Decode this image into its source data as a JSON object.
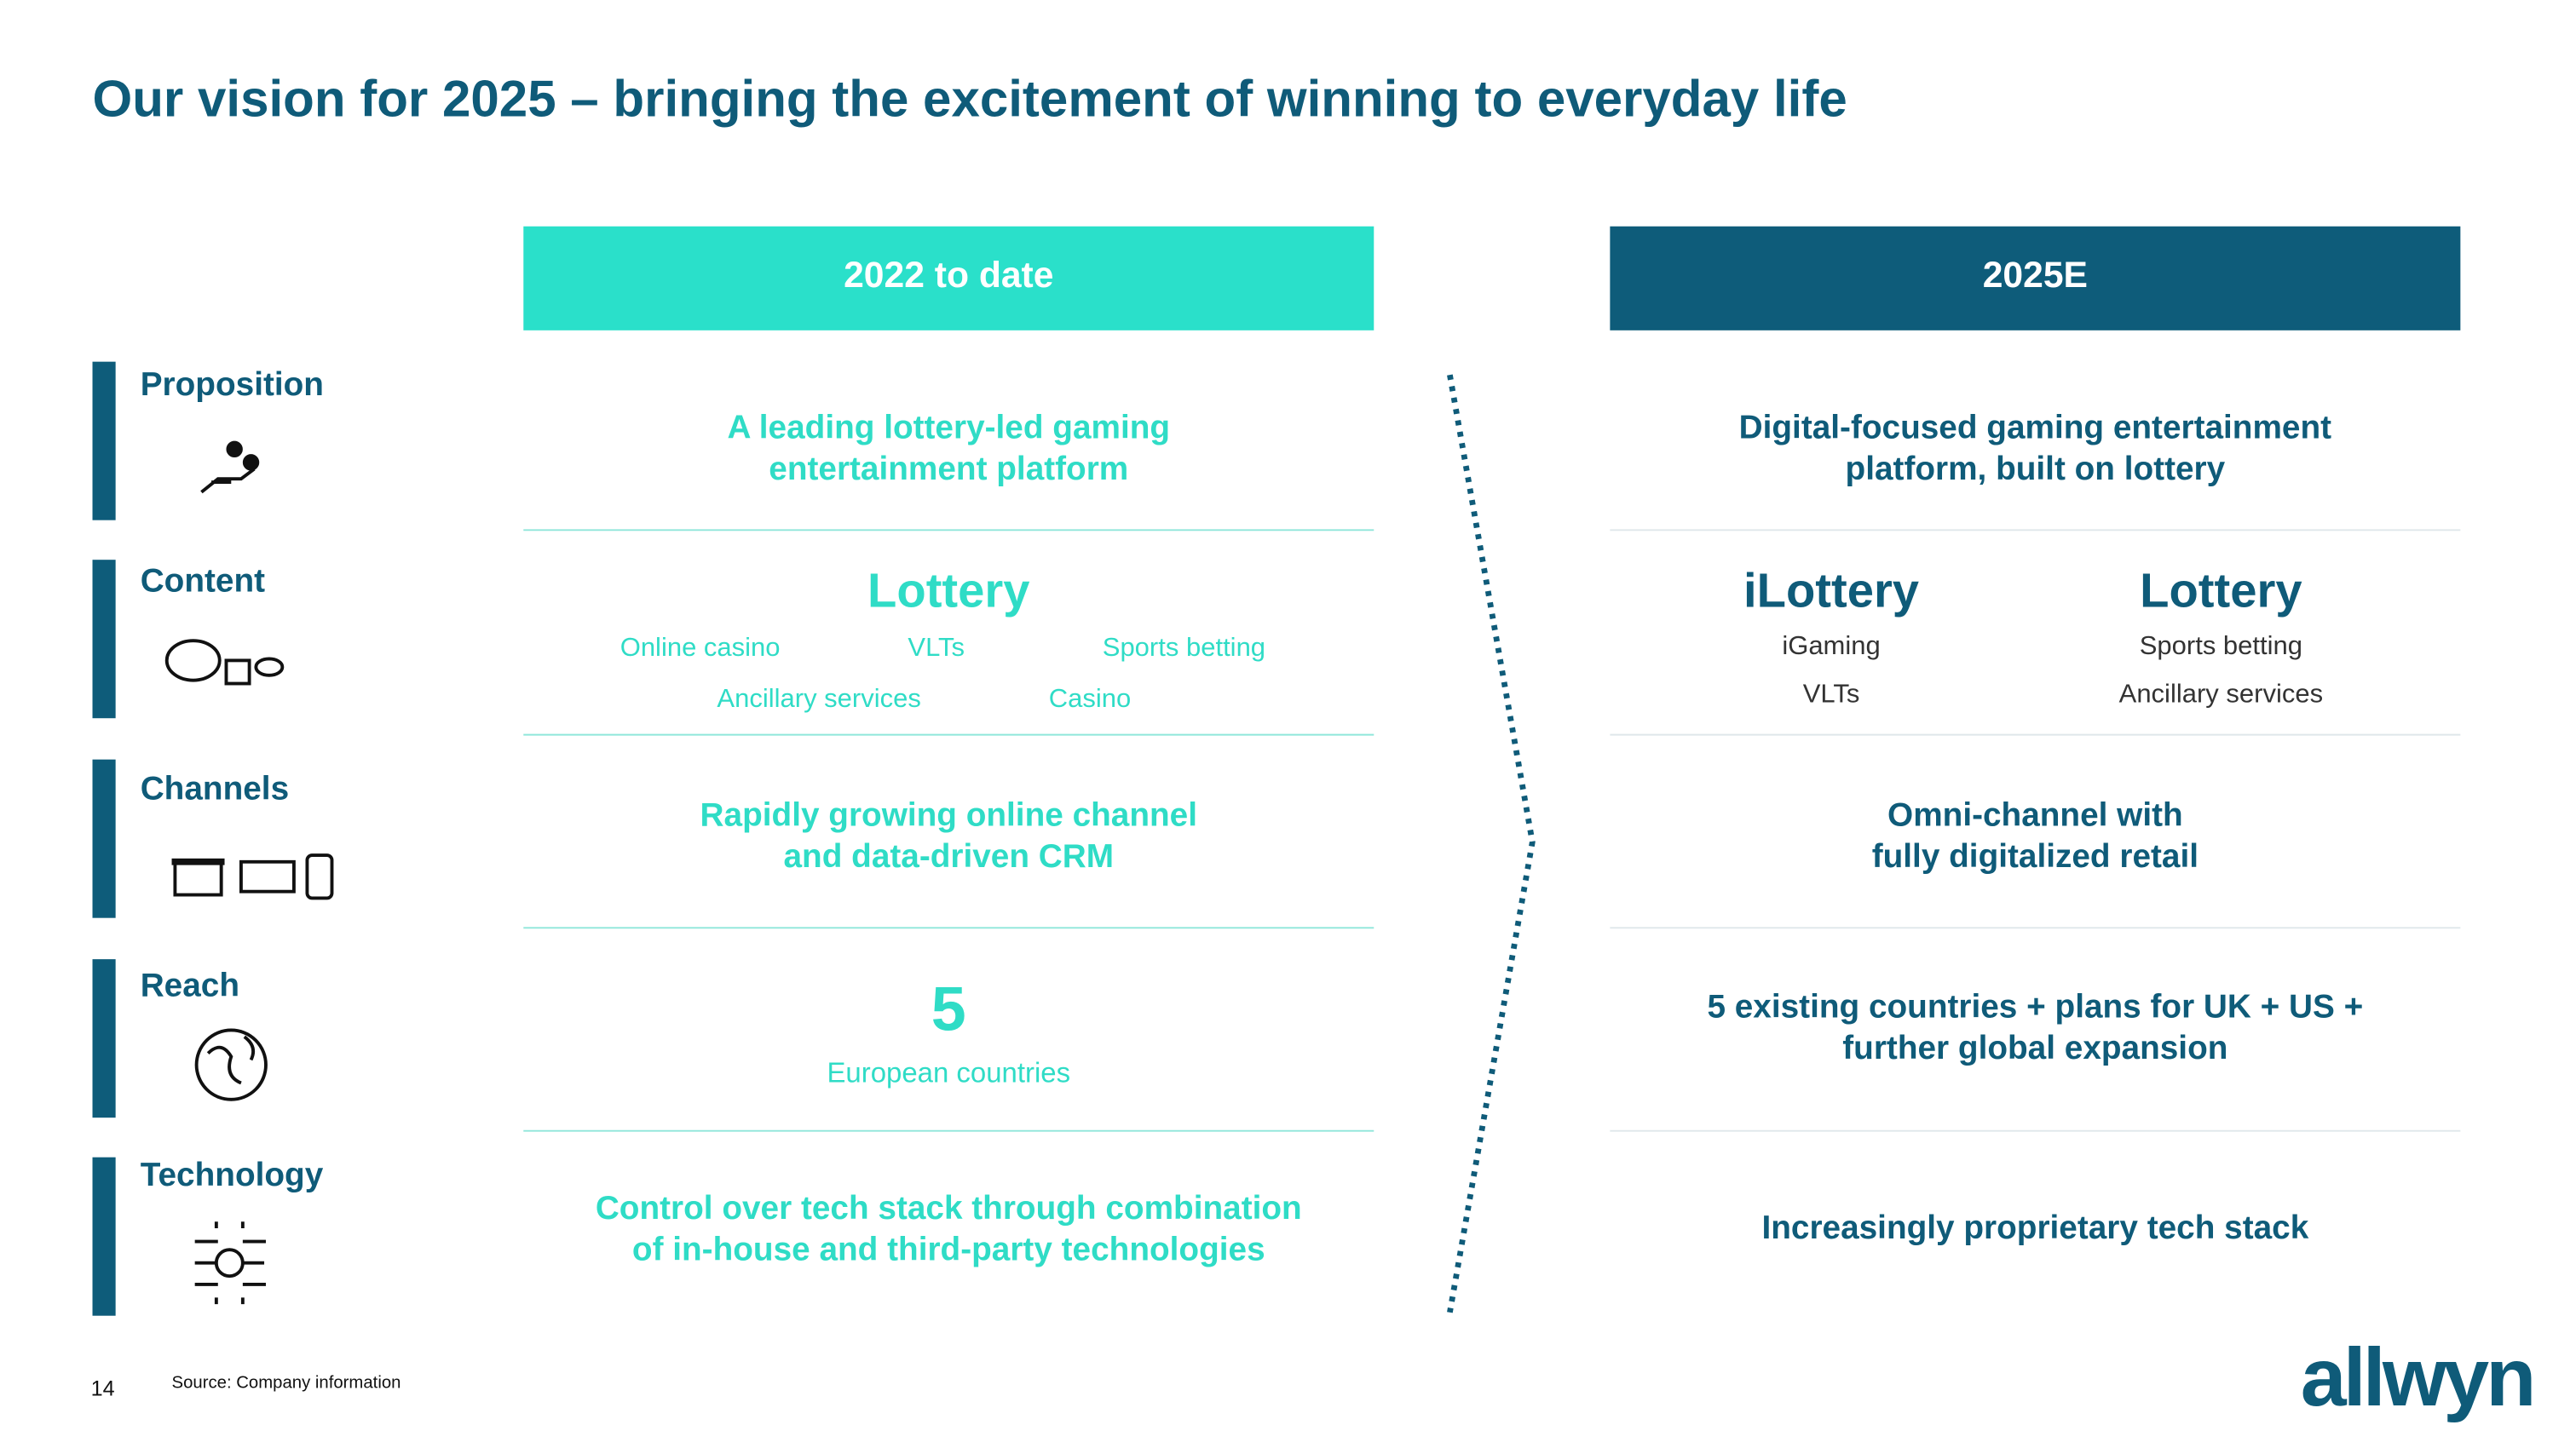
{
  "header": {
    "title": "Our vision for 2025 – bringing the excitement of winning to everyday life"
  },
  "columns": [
    "2022 to date",
    "2025E"
  ],
  "rows": [
    "Proposition",
    "Content",
    "Channels",
    "Reach",
    "Technology"
  ],
  "current": {
    "proposition": [
      "A leading lottery-led gaming",
      "entertainment platform"
    ],
    "content": {
      "main": "Lottery",
      "items": [
        "Online casino",
        "VLTs",
        "Sports betting",
        "Ancillary services",
        "Casino"
      ]
    },
    "channels": [
      "Rapidly growing online channel",
      "and data-driven CRM"
    ],
    "reach": {
      "number": "5",
      "label": "European countries"
    },
    "technology": [
      "Control over tech stack through combination",
      "of in-house and third-party technologies"
    ]
  },
  "future": {
    "proposition": [
      "Digital-focused gaming entertainment",
      "platform, built on lottery"
    ],
    "content": [
      {
        "main": "iLottery",
        "items": [
          "iGaming",
          "VLTs"
        ]
      },
      {
        "main": "Lottery",
        "items": [
          "Sports betting",
          "Ancillary services"
        ]
      }
    ],
    "channels": [
      "Omni-channel with",
      "fully digitalized retail"
    ],
    "reach": [
      "5 existing countries + plans for UK + US +",
      "further global expansion"
    ],
    "technology": [
      "Increasingly proprietary tech stack"
    ]
  },
  "footer": {
    "page": "14",
    "source": "Source: Company information",
    "logo": "allwyn"
  }
}
